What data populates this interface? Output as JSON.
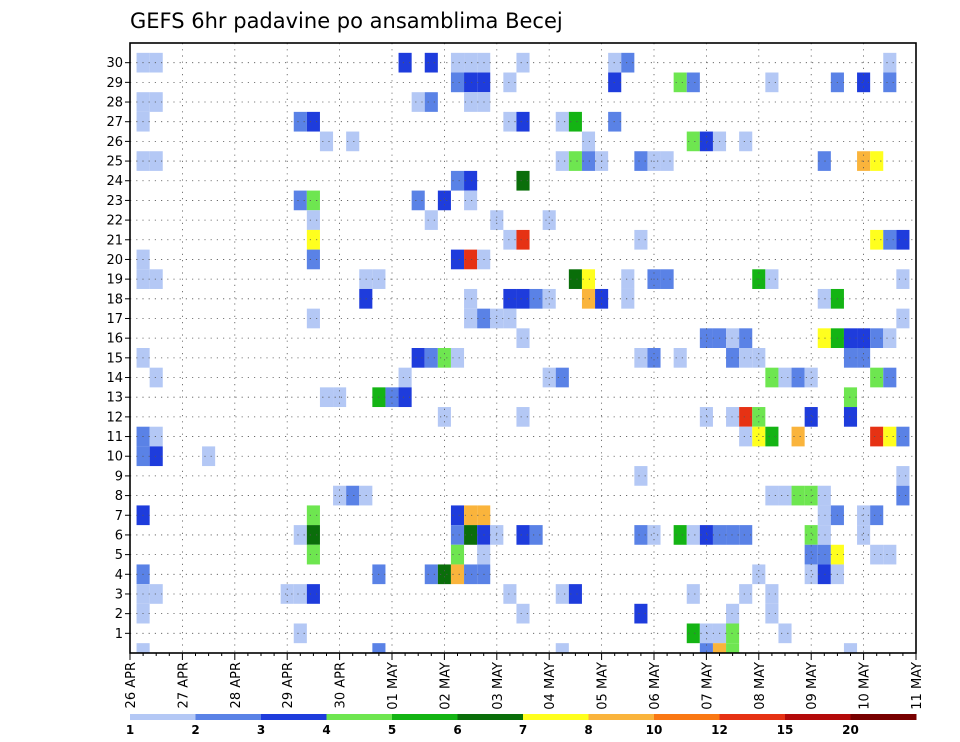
{
  "chart_data": {
    "type": "heatmap",
    "title": "GEFS 6hr padavine po ansamblima Becej",
    "y_categories": [
      "1",
      "2",
      "3",
      "4",
      "5",
      "6",
      "7",
      "8",
      "9",
      "10",
      "11",
      "12",
      "13",
      "14",
      "15",
      "16",
      "17",
      "18",
      "19",
      "20",
      "21",
      "22",
      "23",
      "24",
      "25",
      "26",
      "27",
      "28",
      "29",
      "30"
    ],
    "x_tick_labels": [
      "26 APR",
      "27 APR",
      "28 APR",
      "29 APR",
      "30 APR",
      "01 MAY",
      "02 MAY",
      "03 MAY",
      "04 MAY",
      "05 MAY",
      "06 MAY",
      "07 MAY",
      "08 MAY",
      "09 MAY",
      "10 MAY",
      "11 MAY"
    ],
    "x_step_hours": 6,
    "steps_per_day": 4,
    "num_steps": 61,
    "grid": true,
    "color_levels": [
      1,
      2,
      3,
      4,
      5,
      6,
      7,
      8,
      10,
      12,
      15,
      20
    ],
    "colorbar_labels": [
      "1",
      "2",
      "3",
      "4",
      "5",
      "6",
      "7",
      "8",
      "10",
      "12",
      "15",
      "20"
    ],
    "colorbar_colors": [
      "#b4c8f5",
      "#5a82e6",
      "#1e3cdc",
      "#6ee650",
      "#14b414",
      "#0a6e0a",
      "#ffff1e",
      "#fab43c",
      "#fa7814",
      "#e63214",
      "#b40a0a",
      "#780000"
    ],
    "cells": [
      [
        30,
        1,
        1
      ],
      [
        30,
        2,
        1
      ],
      [
        30,
        21,
        3
      ],
      [
        30,
        23,
        3
      ],
      [
        30,
        25,
        1
      ],
      [
        30,
        26,
        1
      ],
      [
        30,
        27,
        1
      ],
      [
        30,
        30,
        1
      ],
      [
        30,
        37,
        1
      ],
      [
        30,
        38,
        2
      ],
      [
        30,
        58,
        1
      ],
      [
        29,
        25,
        2
      ],
      [
        29,
        26,
        3
      ],
      [
        29,
        27,
        3
      ],
      [
        29,
        29,
        1
      ],
      [
        29,
        37,
        3
      ],
      [
        29,
        42,
        4
      ],
      [
        29,
        43,
        2
      ],
      [
        29,
        49,
        1
      ],
      [
        29,
        54,
        2
      ],
      [
        29,
        56,
        3
      ],
      [
        29,
        58,
        2
      ],
      [
        28,
        1,
        1
      ],
      [
        28,
        2,
        1
      ],
      [
        28,
        22,
        1
      ],
      [
        28,
        23,
        2
      ],
      [
        28,
        26,
        1
      ],
      [
        28,
        27,
        1
      ],
      [
        27,
        1,
        1
      ],
      [
        27,
        13,
        2
      ],
      [
        27,
        14,
        3
      ],
      [
        27,
        29,
        1
      ],
      [
        27,
        30,
        3
      ],
      [
        27,
        33,
        1
      ],
      [
        27,
        34,
        5
      ],
      [
        27,
        37,
        2
      ],
      [
        26,
        15,
        1
      ],
      [
        26,
        17,
        1
      ],
      [
        26,
        35,
        1
      ],
      [
        26,
        43,
        4
      ],
      [
        26,
        44,
        3
      ],
      [
        26,
        45,
        1
      ],
      [
        26,
        47,
        1
      ],
      [
        25,
        1,
        1
      ],
      [
        25,
        2,
        1
      ],
      [
        25,
        33,
        1
      ],
      [
        25,
        34,
        4
      ],
      [
        25,
        35,
        2
      ],
      [
        25,
        36,
        1
      ],
      [
        25,
        39,
        2
      ],
      [
        25,
        40,
        1
      ],
      [
        25,
        41,
        1
      ],
      [
        25,
        53,
        2
      ],
      [
        25,
        56,
        8
      ],
      [
        25,
        57,
        7
      ],
      [
        24,
        25,
        2
      ],
      [
        24,
        26,
        3
      ],
      [
        24,
        30,
        6
      ],
      [
        23,
        13,
        2
      ],
      [
        23,
        14,
        4
      ],
      [
        23,
        22,
        2
      ],
      [
        23,
        24,
        3
      ],
      [
        23,
        26,
        1
      ],
      [
        22,
        14,
        1
      ],
      [
        22,
        23,
        1
      ],
      [
        22,
        28,
        1
      ],
      [
        22,
        32,
        1
      ],
      [
        21,
        14,
        7
      ],
      [
        21,
        29,
        1
      ],
      [
        21,
        30,
        10
      ],
      [
        21,
        39,
        1
      ],
      [
        21,
        57,
        7
      ],
      [
        21,
        58,
        2
      ],
      [
        21,
        59,
        3
      ],
      [
        20,
        1,
        1
      ],
      [
        20,
        14,
        2
      ],
      [
        20,
        25,
        3
      ],
      [
        20,
        26,
        10
      ],
      [
        20,
        27,
        1
      ],
      [
        19,
        1,
        1
      ],
      [
        19,
        2,
        1
      ],
      [
        19,
        18,
        1
      ],
      [
        19,
        19,
        1
      ],
      [
        19,
        34,
        6
      ],
      [
        19,
        35,
        7
      ],
      [
        19,
        38,
        1
      ],
      [
        19,
        40,
        2
      ],
      [
        19,
        41,
        2
      ],
      [
        19,
        48,
        5
      ],
      [
        19,
        49,
        1
      ],
      [
        19,
        59,
        1
      ],
      [
        18,
        18,
        3
      ],
      [
        18,
        26,
        1
      ],
      [
        18,
        29,
        3
      ],
      [
        18,
        30,
        3
      ],
      [
        18,
        31,
        2
      ],
      [
        18,
        32,
        1
      ],
      [
        18,
        35,
        8
      ],
      [
        18,
        36,
        3
      ],
      [
        18,
        38,
        1
      ],
      [
        18,
        53,
        1
      ],
      [
        18,
        54,
        5
      ],
      [
        17,
        14,
        1
      ],
      [
        17,
        26,
        1
      ],
      [
        17,
        27,
        2
      ],
      [
        17,
        28,
        1
      ],
      [
        17,
        29,
        1
      ],
      [
        17,
        59,
        1
      ],
      [
        16,
        30,
        1
      ],
      [
        16,
        44,
        2
      ],
      [
        16,
        45,
        2
      ],
      [
        16,
        46,
        1
      ],
      [
        16,
        47,
        2
      ],
      [
        16,
        53,
        7
      ],
      [
        16,
        54,
        5
      ],
      [
        16,
        55,
        3
      ],
      [
        16,
        56,
        3
      ],
      [
        16,
        57,
        2
      ],
      [
        16,
        58,
        1
      ],
      [
        15,
        1,
        1
      ],
      [
        15,
        22,
        3
      ],
      [
        15,
        23,
        2
      ],
      [
        15,
        24,
        4
      ],
      [
        15,
        25,
        1
      ],
      [
        15,
        39,
        1
      ],
      [
        15,
        40,
        2
      ],
      [
        15,
        42,
        1
      ],
      [
        15,
        46,
        2
      ],
      [
        15,
        47,
        1
      ],
      [
        15,
        48,
        1
      ],
      [
        15,
        55,
        2
      ],
      [
        15,
        56,
        2
      ],
      [
        14,
        2,
        1
      ],
      [
        14,
        21,
        1
      ],
      [
        14,
        32,
        1
      ],
      [
        14,
        33,
        2
      ],
      [
        14,
        49,
        4
      ],
      [
        14,
        50,
        1
      ],
      [
        14,
        51,
        2
      ],
      [
        14,
        52,
        1
      ],
      [
        14,
        57,
        4
      ],
      [
        14,
        58,
        2
      ],
      [
        13,
        15,
        1
      ],
      [
        13,
        16,
        1
      ],
      [
        13,
        19,
        5
      ],
      [
        13,
        20,
        2
      ],
      [
        13,
        21,
        3
      ],
      [
        13,
        55,
        4
      ],
      [
        12,
        24,
        1
      ],
      [
        12,
        30,
        1
      ],
      [
        12,
        44,
        1
      ],
      [
        12,
        46,
        1
      ],
      [
        12,
        47,
        10
      ],
      [
        12,
        48,
        4
      ],
      [
        12,
        52,
        3
      ],
      [
        12,
        55,
        3
      ],
      [
        11,
        1,
        2
      ],
      [
        11,
        2,
        1
      ],
      [
        11,
        47,
        1
      ],
      [
        11,
        48,
        7
      ],
      [
        11,
        49,
        5
      ],
      [
        11,
        51,
        8
      ],
      [
        11,
        57,
        10
      ],
      [
        11,
        58,
        7
      ],
      [
        11,
        59,
        2
      ],
      [
        10,
        1,
        2
      ],
      [
        10,
        2,
        3
      ],
      [
        10,
        6,
        1
      ],
      [
        9,
        39,
        1
      ],
      [
        9,
        59,
        1
      ],
      [
        8,
        16,
        1
      ],
      [
        8,
        17,
        2
      ],
      [
        8,
        18,
        1
      ],
      [
        8,
        49,
        1
      ],
      [
        8,
        50,
        1
      ],
      [
        8,
        51,
        4
      ],
      [
        8,
        52,
        4
      ],
      [
        8,
        53,
        1
      ],
      [
        8,
        59,
        2
      ],
      [
        7,
        1,
        3
      ],
      [
        7,
        14,
        4
      ],
      [
        7,
        25,
        3
      ],
      [
        7,
        26,
        8
      ],
      [
        7,
        27,
        8
      ],
      [
        7,
        53,
        1
      ],
      [
        7,
        54,
        2
      ],
      [
        7,
        56,
        1
      ],
      [
        7,
        57,
        2
      ],
      [
        6,
        13,
        1
      ],
      [
        6,
        14,
        6
      ],
      [
        6,
        25,
        2
      ],
      [
        6,
        26,
        6
      ],
      [
        6,
        27,
        3
      ],
      [
        6,
        28,
        1
      ],
      [
        6,
        30,
        3
      ],
      [
        6,
        31,
        2
      ],
      [
        6,
        39,
        2
      ],
      [
        6,
        40,
        1
      ],
      [
        6,
        42,
        5
      ],
      [
        6,
        43,
        1
      ],
      [
        6,
        44,
        3
      ],
      [
        6,
        45,
        2
      ],
      [
        6,
        46,
        2
      ],
      [
        6,
        47,
        2
      ],
      [
        6,
        52,
        4
      ],
      [
        6,
        53,
        1
      ],
      [
        6,
        56,
        1
      ],
      [
        5,
        14,
        4
      ],
      [
        5,
        25,
        4
      ],
      [
        5,
        27,
        1
      ],
      [
        5,
        52,
        2
      ],
      [
        5,
        53,
        2
      ],
      [
        5,
        54,
        7
      ],
      [
        5,
        57,
        1
      ],
      [
        5,
        58,
        1
      ],
      [
        4,
        1,
        2
      ],
      [
        4,
        19,
        2
      ],
      [
        4,
        23,
        2
      ],
      [
        4,
        24,
        6
      ],
      [
        4,
        25,
        8
      ],
      [
        4,
        26,
        2
      ],
      [
        4,
        27,
        2
      ],
      [
        4,
        48,
        1
      ],
      [
        4,
        52,
        1
      ],
      [
        4,
        53,
        3
      ],
      [
        4,
        54,
        1
      ],
      [
        3,
        1,
        1
      ],
      [
        3,
        2,
        1
      ],
      [
        3,
        12,
        1
      ],
      [
        3,
        13,
        1
      ],
      [
        3,
        14,
        3
      ],
      [
        3,
        29,
        1
      ],
      [
        3,
        33,
        1
      ],
      [
        3,
        34,
        3
      ],
      [
        3,
        43,
        1
      ],
      [
        3,
        47,
        1
      ],
      [
        3,
        49,
        1
      ],
      [
        2,
        1,
        1
      ],
      [
        2,
        30,
        1
      ],
      [
        2,
        39,
        3
      ],
      [
        2,
        46,
        1
      ],
      [
        2,
        49,
        1
      ],
      [
        1,
        13,
        1
      ],
      [
        1,
        43,
        5
      ],
      [
        1,
        44,
        1
      ],
      [
        1,
        45,
        1
      ],
      [
        1,
        46,
        4
      ],
      [
        1,
        50,
        1
      ],
      [
        0,
        1,
        1
      ],
      [
        0,
        19,
        2
      ],
      [
        0,
        33,
        1
      ],
      [
        0,
        44,
        2
      ],
      [
        0,
        45,
        8
      ],
      [
        0,
        46,
        4
      ],
      [
        0,
        55,
        1
      ]
    ]
  }
}
